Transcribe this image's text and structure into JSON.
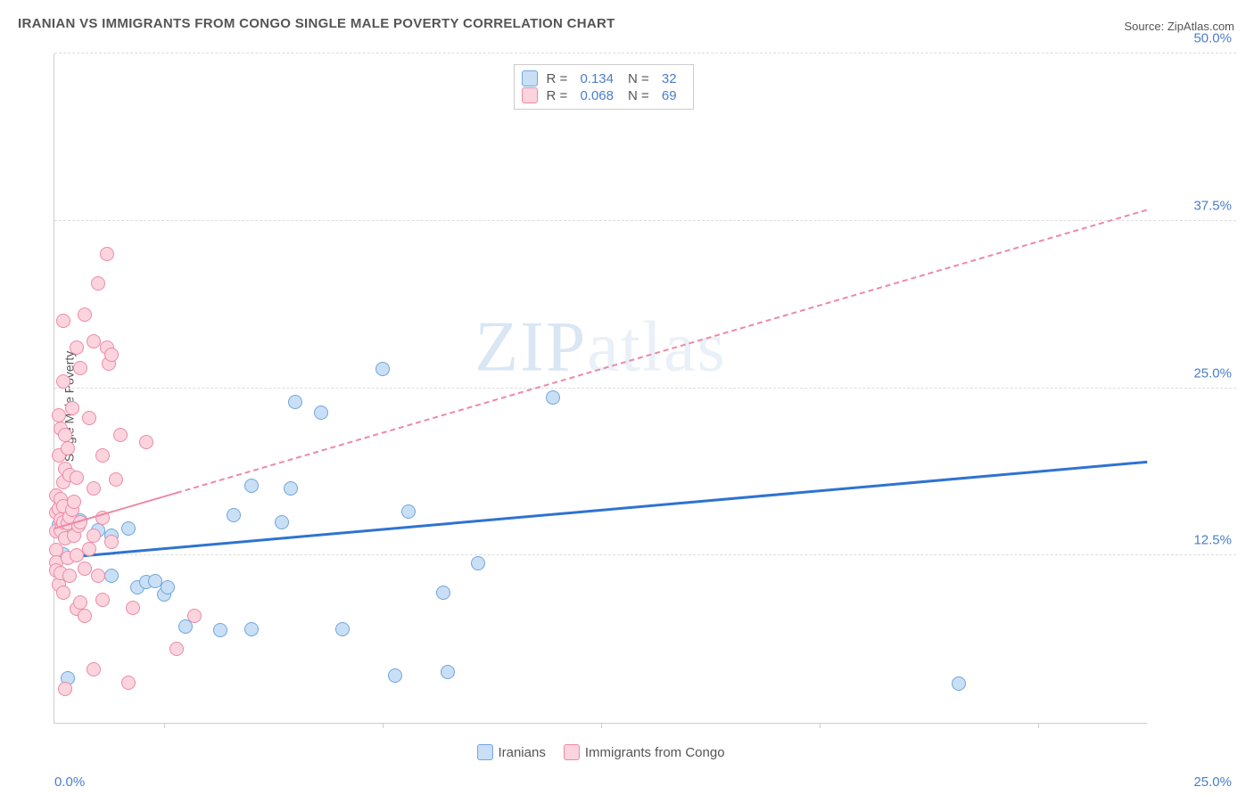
{
  "title": "IRANIAN VS IMMIGRANTS FROM CONGO SINGLE MALE POVERTY CORRELATION CHART",
  "source": "Source: ZipAtlas.com",
  "watermark_a": "ZIP",
  "watermark_b": "atlas",
  "ylabel": "Single Male Poverty",
  "chart": {
    "type": "scatter",
    "xlim": [
      0,
      25
    ],
    "ylim": [
      0,
      50
    ],
    "ytick_step": 12.5,
    "ytick_labels": [
      "12.5%",
      "25.0%",
      "37.5%",
      "50.0%"
    ],
    "xtick_positions": [
      2.5,
      7.5,
      12.5,
      17.5,
      22.5
    ],
    "xaxis_min_label": "0.0%",
    "xaxis_max_label": "25.0%",
    "grid_color": "#dddddd",
    "axis_color": "#cccccc",
    "background_color": "#ffffff",
    "marker_size": 16,
    "marker_border_width": 1.5,
    "series": [
      {
        "name": "Iranians",
        "fill": "#c9dff5",
        "stroke": "#6fa5de",
        "R": "0.134",
        "N": "32",
        "trend": {
          "x1": 0,
          "y1": 12.4,
          "x2": 25,
          "y2": 19.6,
          "width": 3,
          "dash": false,
          "color": "#2f73d1",
          "extrapolate_from_x": 0
        },
        "points": [
          [
            0.1,
            14.8
          ],
          [
            0.2,
            12.6
          ],
          [
            0.25,
            14.5
          ],
          [
            0.3,
            3.3
          ],
          [
            0.6,
            15.1
          ],
          [
            1.0,
            14.4
          ],
          [
            1.3,
            14.0
          ],
          [
            1.3,
            11.0
          ],
          [
            1.7,
            14.5
          ],
          [
            1.9,
            10.1
          ],
          [
            2.1,
            10.5
          ],
          [
            2.3,
            10.6
          ],
          [
            2.5,
            9.6
          ],
          [
            2.6,
            10.1
          ],
          [
            3.0,
            7.2
          ],
          [
            3.8,
            6.9
          ],
          [
            4.1,
            15.5
          ],
          [
            4.5,
            7.0
          ],
          [
            4.5,
            17.7
          ],
          [
            5.2,
            15.0
          ],
          [
            5.4,
            17.5
          ],
          [
            5.5,
            24.0
          ],
          [
            6.1,
            23.2
          ],
          [
            6.6,
            7.0
          ],
          [
            7.5,
            26.4
          ],
          [
            7.8,
            3.5
          ],
          [
            8.1,
            15.8
          ],
          [
            8.9,
            9.7
          ],
          [
            9.0,
            3.8
          ],
          [
            9.7,
            11.9
          ],
          [
            11.4,
            24.3
          ],
          [
            20.7,
            2.9
          ]
        ]
      },
      {
        "name": "Immigrants from Congo",
        "fill": "#fbd4de",
        "stroke": "#ec8aa6",
        "R": "0.068",
        "N": "69",
        "trend": {
          "x1": 0,
          "y1": 14.6,
          "x2": 25,
          "y2": 38.4,
          "width": 2.5,
          "dash": true,
          "color": "#ec8aa6",
          "extrapolate_from_x": 2.8,
          "solid_until_x": 2.8
        },
        "points": [
          [
            0.05,
            12.9
          ],
          [
            0.05,
            14.3
          ],
          [
            0.05,
            15.7
          ],
          [
            0.05,
            17.0
          ],
          [
            0.05,
            12.0
          ],
          [
            0.05,
            11.4
          ],
          [
            0.1,
            20.0
          ],
          [
            0.1,
            16.0
          ],
          [
            0.1,
            23.0
          ],
          [
            0.1,
            10.3
          ],
          [
            0.15,
            11.2
          ],
          [
            0.15,
            14.4
          ],
          [
            0.15,
            15.2
          ],
          [
            0.15,
            16.7
          ],
          [
            0.15,
            22.0
          ],
          [
            0.2,
            15.0
          ],
          [
            0.2,
            16.2
          ],
          [
            0.2,
            18.0
          ],
          [
            0.2,
            25.5
          ],
          [
            0.2,
            30.0
          ],
          [
            0.2,
            9.7
          ],
          [
            0.25,
            2.5
          ],
          [
            0.25,
            13.8
          ],
          [
            0.25,
            19.0
          ],
          [
            0.25,
            21.5
          ],
          [
            0.3,
            12.3
          ],
          [
            0.3,
            14.9
          ],
          [
            0.3,
            20.5
          ],
          [
            0.35,
            11.0
          ],
          [
            0.35,
            15.4
          ],
          [
            0.35,
            18.5
          ],
          [
            0.4,
            15.9
          ],
          [
            0.4,
            23.5
          ],
          [
            0.45,
            14.0
          ],
          [
            0.45,
            16.5
          ],
          [
            0.5,
            8.5
          ],
          [
            0.5,
            12.5
          ],
          [
            0.5,
            18.3
          ],
          [
            0.5,
            28.0
          ],
          [
            0.55,
            14.7
          ],
          [
            0.6,
            9.0
          ],
          [
            0.6,
            15.0
          ],
          [
            0.6,
            26.5
          ],
          [
            0.7,
            11.5
          ],
          [
            0.7,
            8.0
          ],
          [
            0.7,
            30.5
          ],
          [
            0.8,
            13.0
          ],
          [
            0.8,
            22.8
          ],
          [
            0.9,
            4.0
          ],
          [
            0.9,
            14.0
          ],
          [
            0.9,
            17.5
          ],
          [
            0.9,
            28.5
          ],
          [
            1.0,
            11.0
          ],
          [
            1.0,
            32.8
          ],
          [
            1.1,
            9.2
          ],
          [
            1.1,
            15.3
          ],
          [
            1.1,
            20.0
          ],
          [
            1.2,
            28.0
          ],
          [
            1.2,
            35.0
          ],
          [
            1.25,
            26.8
          ],
          [
            1.3,
            27.5
          ],
          [
            1.3,
            13.5
          ],
          [
            1.4,
            18.2
          ],
          [
            1.5,
            21.5
          ],
          [
            1.7,
            3.0
          ],
          [
            1.8,
            8.6
          ],
          [
            2.1,
            21.0
          ],
          [
            2.8,
            5.5
          ],
          [
            3.2,
            8.0
          ]
        ]
      }
    ]
  },
  "legend_top": {
    "border_color": "#cccccc"
  }
}
